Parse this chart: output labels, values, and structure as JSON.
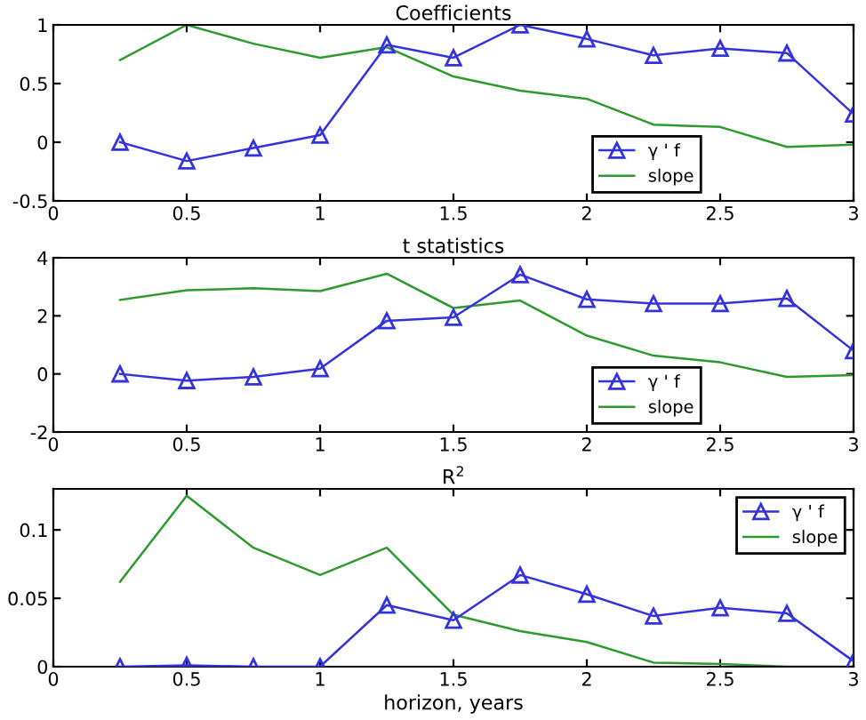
{
  "chart_data": [
    {
      "type": "line",
      "title": "Coefficients",
      "x": [
        0.25,
        0.5,
        0.75,
        1,
        1.25,
        1.5,
        1.75,
        2,
        2.25,
        2.5,
        2.75,
        3
      ],
      "xlim": [
        0,
        3
      ],
      "xticks": [
        0,
        0.5,
        1,
        1.5,
        2,
        2.5,
        3
      ],
      "ylim": [
        -0.5,
        1
      ],
      "yticks": [
        -0.5,
        0,
        0.5,
        1
      ],
      "legend": "bottom right",
      "grid": false,
      "series": [
        {
          "name": "γ ' f",
          "color": "#3333dd",
          "marker": "triangle",
          "values": [
            0,
            -0.16,
            -0.05,
            0.06,
            0.83,
            0.72,
            1.0,
            0.88,
            0.74,
            0.8,
            0.76,
            0.24
          ]
        },
        {
          "name": "slope",
          "color": "#2e9a2e",
          "marker": "none",
          "values": [
            0.7,
            1.0,
            0.84,
            0.72,
            0.81,
            0.56,
            0.44,
            0.37,
            0.15,
            0.13,
            -0.04,
            -0.02
          ]
        }
      ]
    },
    {
      "type": "line",
      "title": "t statistics",
      "x": [
        0.25,
        0.5,
        0.75,
        1,
        1.25,
        1.5,
        1.75,
        2,
        2.25,
        2.5,
        2.75,
        3
      ],
      "xlim": [
        0,
        3
      ],
      "xticks": [
        0,
        0.5,
        1,
        1.5,
        2,
        2.5,
        3
      ],
      "ylim": [
        -2,
        4
      ],
      "yticks": [
        -2,
        0,
        2,
        4
      ],
      "legend": "bottom right",
      "grid": false,
      "series": [
        {
          "name": "γ ' f",
          "color": "#3333dd",
          "marker": "triangle",
          "values": [
            0,
            -0.23,
            -0.1,
            0.18,
            1.83,
            1.95,
            3.42,
            2.57,
            2.42,
            2.42,
            2.6,
            0.8
          ]
        },
        {
          "name": "slope",
          "color": "#2e9a2e",
          "marker": "none",
          "values": [
            2.55,
            2.88,
            2.95,
            2.85,
            3.45,
            2.27,
            2.53,
            1.32,
            0.63,
            0.4,
            -0.1,
            -0.04
          ]
        }
      ]
    },
    {
      "type": "line",
      "title": "R$^{2}$",
      "xlabel": "horizon, years",
      "x": [
        0.25,
        0.5,
        0.75,
        1,
        1.25,
        1.5,
        1.75,
        2,
        2.25,
        2.5,
        2.75,
        3
      ],
      "xlim": [
        0,
        3
      ],
      "xticks": [
        0,
        0.5,
        1,
        1.5,
        2,
        2.5,
        3
      ],
      "ylim": [
        0,
        0.13
      ],
      "yticks": [
        0,
        0.05,
        0.1
      ],
      "legend": "top right",
      "grid": false,
      "series": [
        {
          "name": "γ ' f",
          "color": "#3333dd",
          "marker": "triangle",
          "values": [
            0,
            0.001,
            0,
            0,
            0.045,
            0.034,
            0.067,
            0.053,
            0.037,
            0.043,
            0.039,
            0.004
          ]
        },
        {
          "name": "slope",
          "color": "#2e9a2e",
          "marker": "none",
          "values": [
            0.062,
            0.125,
            0.087,
            0.067,
            0.087,
            0.038,
            0.026,
            0.018,
            0.003,
            0.002,
            0,
            0
          ]
        }
      ]
    }
  ]
}
